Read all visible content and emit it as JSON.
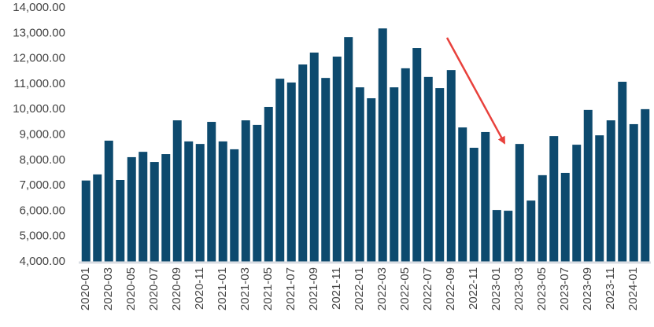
{
  "chart_data": {
    "type": "bar",
    "categories": [
      "2020-01",
      null,
      "2020-03",
      null,
      "2020-05",
      null,
      "2020-07",
      null,
      "2020-09",
      null,
      "2020-11",
      null,
      "2021-01",
      null,
      "2021-03",
      null,
      "2021-05",
      null,
      "2021-07",
      null,
      "2021-09",
      null,
      "2021-11",
      null,
      "2022-01",
      null,
      "2022-03",
      null,
      "2022-05",
      null,
      "2022-07",
      null,
      "2022-09",
      null,
      "2022-11",
      null,
      "2023-01",
      null,
      "2023-03",
      null,
      "2023-05",
      null,
      "2023-07",
      null,
      "2023-09",
      null,
      "2023-11",
      null,
      "2024-01",
      null
    ],
    "values": [
      7200,
      7440,
      8770,
      7220,
      8120,
      8330,
      7930,
      8240,
      9570,
      8740,
      8640,
      9510,
      8740,
      8430,
      9570,
      9390,
      10100,
      11210,
      11060,
      11770,
      12240,
      11240,
      12080,
      12850,
      10870,
      10440,
      13190,
      10870,
      11620,
      12420,
      11280,
      10840,
      11550,
      9290,
      8490,
      9110,
      6040,
      6010,
      8640,
      6410,
      7410,
      8950,
      7500,
      8610,
      9980,
      8980,
      9570,
      11090,
      9420,
      10010
    ],
    "color": "#0d4a6e",
    "ylim": [
      4000,
      14000
    ],
    "yticks": [
      {
        "value": 4000,
        "label": "4,000.00"
      },
      {
        "value": 5000,
        "label": "5,000.00"
      },
      {
        "value": 6000,
        "label": "6,000.00"
      },
      {
        "value": 7000,
        "label": "7,000.00"
      },
      {
        "value": 8000,
        "label": "8,000.00"
      },
      {
        "value": 9000,
        "label": "9,000.00"
      },
      {
        "value": 10000,
        "label": "10,000.00"
      },
      {
        "value": 11000,
        "label": "11,000.00"
      },
      {
        "value": 12000,
        "label": "12,000.00"
      },
      {
        "value": 13000,
        "label": "13,000.00"
      },
      {
        "value": 14000,
        "label": "14,000.00"
      }
    ],
    "grid": false
  }
}
